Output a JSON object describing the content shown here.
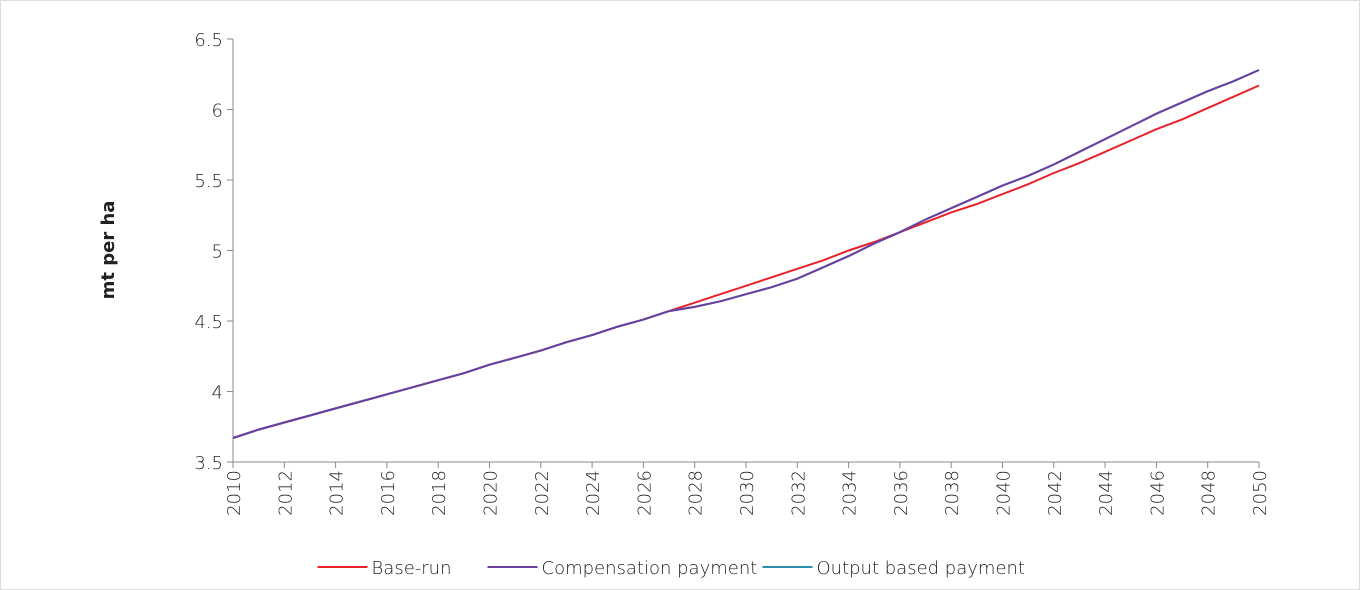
{
  "chart_data": {
    "type": "line",
    "ylabel": "mt per ha",
    "x": [
      2010,
      2011,
      2012,
      2013,
      2014,
      2015,
      2016,
      2017,
      2018,
      2019,
      2020,
      2021,
      2022,
      2023,
      2024,
      2025,
      2026,
      2027,
      2028,
      2029,
      2030,
      2031,
      2032,
      2033,
      2034,
      2035,
      2036,
      2037,
      2038,
      2039,
      2040,
      2041,
      2042,
      2043,
      2044,
      2045,
      2046,
      2047,
      2048,
      2049,
      2050
    ],
    "series": [
      {
        "name": "Base-run",
        "color": "#e8232a",
        "values": [
          3.67,
          3.73,
          3.78,
          3.83,
          3.88,
          3.93,
          3.98,
          4.03,
          4.08,
          4.13,
          4.19,
          4.24,
          4.29,
          4.35,
          4.4,
          4.46,
          4.51,
          4.57,
          4.63,
          4.69,
          4.75,
          4.81,
          4.87,
          4.93,
          5.0,
          5.06,
          5.13,
          5.2,
          5.27,
          5.33,
          5.4,
          5.47,
          5.55,
          5.62,
          5.7,
          5.78,
          5.86,
          5.93,
          6.01,
          6.09,
          6.17
        ]
      },
      {
        "name": "Compensation payment",
        "color": "#6a3fa0",
        "values": [
          3.67,
          3.73,
          3.78,
          3.83,
          3.88,
          3.93,
          3.98,
          4.03,
          4.08,
          4.13,
          4.19,
          4.24,
          4.29,
          4.35,
          4.4,
          4.46,
          4.51,
          4.57,
          4.6,
          4.64,
          4.69,
          4.74,
          4.8,
          4.88,
          4.96,
          5.05,
          5.13,
          5.22,
          5.3,
          5.38,
          5.46,
          5.53,
          5.61,
          5.7,
          5.79,
          5.88,
          5.97,
          6.05,
          6.13,
          6.2,
          6.28
        ]
      },
      {
        "name": "Output based payment",
        "color": "#2a8fa8",
        "values": [
          3.67,
          3.73,
          3.78,
          3.83,
          3.88,
          3.93,
          3.98,
          4.03,
          4.08,
          4.13,
          4.19,
          4.24,
          4.29,
          4.35,
          4.4,
          4.46,
          4.51,
          4.57,
          4.6,
          4.64,
          4.69,
          4.74,
          4.8,
          4.88,
          4.96,
          5.05,
          5.13,
          5.22,
          5.3,
          5.38,
          5.46,
          5.53,
          5.61,
          5.7,
          5.79,
          5.88,
          5.97,
          6.05,
          6.13,
          6.2,
          6.28
        ]
      }
    ],
    "xlim": [
      2010,
      2050
    ],
    "xticks": [
      2010,
      2012,
      2014,
      2016,
      2018,
      2020,
      2022,
      2024,
      2026,
      2028,
      2030,
      2032,
      2034,
      2036,
      2038,
      2040,
      2042,
      2044,
      2046,
      2048,
      2050
    ],
    "ylim": [
      3.5,
      6.5
    ],
    "yticks": [
      3.5,
      4,
      4.5,
      5,
      5.5,
      6,
      6.5
    ],
    "grid": false,
    "legend": "bottom"
  }
}
